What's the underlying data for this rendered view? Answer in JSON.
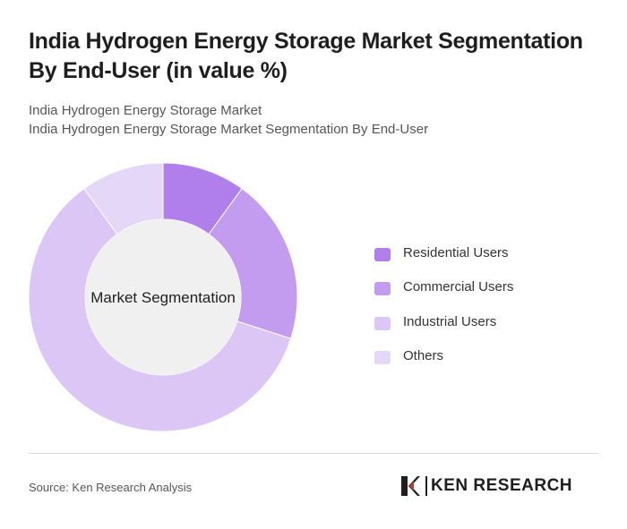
{
  "header": {
    "title": "India Hydrogen Energy Storage Market Segmentation By End-User (in value %)",
    "subtitle_line1": "India Hydrogen Energy Storage Market",
    "subtitle_line2": "India Hydrogen Energy Storage Market Segmentation By End-User"
  },
  "chart_data": {
    "type": "pie",
    "variant": "donut",
    "center_label": "Market Segmentation",
    "categories": [
      "Residential Users",
      "Commercial Users",
      "Industrial Users",
      "Others"
    ],
    "values": [
      10,
      20,
      60,
      10
    ],
    "colors": [
      "#b07fec",
      "#c39cf0",
      "#dbc6f6",
      "#e5d7f8"
    ],
    "legend_position": "right"
  },
  "footer": {
    "source": "Source: Ken Research Analysis",
    "logo_text": "KEN RESEARCH"
  }
}
